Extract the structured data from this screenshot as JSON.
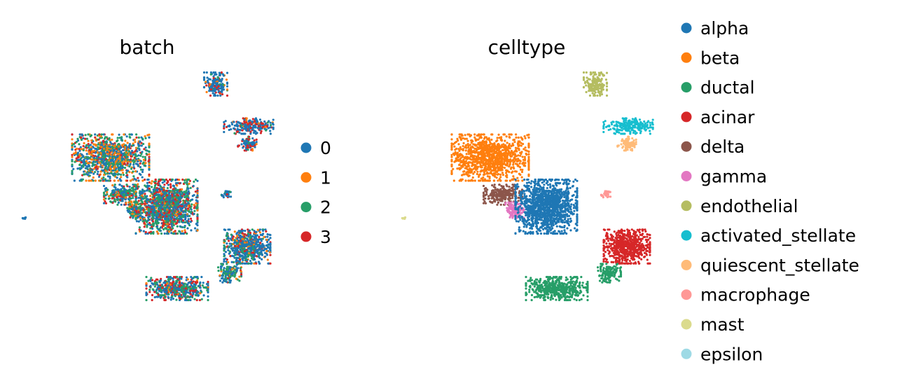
{
  "chart_data": [
    {
      "type": "scatter",
      "title": "batch",
      "xlabel": "",
      "ylabel": "",
      "grid": false,
      "axes_visible": false,
      "legend_placement": "right",
      "legend": [
        {
          "label": "0",
          "color": "#1f77b4"
        },
        {
          "label": "1",
          "color": "#ff7f0e"
        },
        {
          "label": "2",
          "color": "#279e68"
        },
        {
          "label": "3",
          "color": "#d62728"
        }
      ]
    },
    {
      "type": "scatter",
      "title": "celltype",
      "xlabel": "",
      "ylabel": "",
      "grid": false,
      "axes_visible": false,
      "legend_placement": "right",
      "legend": [
        {
          "label": "alpha",
          "color": "#1f77b4"
        },
        {
          "label": "beta",
          "color": "#ff7f0e"
        },
        {
          "label": "ductal",
          "color": "#279e68"
        },
        {
          "label": "acinar",
          "color": "#d62728"
        },
        {
          "label": "delta",
          "color": "#8c564b"
        },
        {
          "label": "gamma",
          "color": "#e377c2"
        },
        {
          "label": "endothelial",
          "color": "#b5bd61"
        },
        {
          "label": "activated_stellate",
          "color": "#17becf"
        },
        {
          "label": "quiescent_stellate",
          "color": "#ffbb78"
        },
        {
          "label": "macrophage",
          "color": "#ff9896"
        },
        {
          "label": "mast",
          "color": "#dbdb8d"
        },
        {
          "label": "epsilon",
          "color": "#9edae5"
        }
      ]
    }
  ],
  "clusters": [
    {
      "celltype": "endothelial",
      "center": [
        13.65,
        17.0
      ],
      "spread": [
        0.75,
        0.75
      ],
      "n": 180,
      "batch_mix": [
        0.65,
        0.1,
        0.1,
        0.15
      ]
    },
    {
      "celltype": "activated_stellate",
      "center": [
        16.0,
        14.0
      ],
      "spread": [
        1.6,
        0.5
      ],
      "n": 220,
      "batch_mix": [
        0.6,
        0.05,
        0.05,
        0.3
      ]
    },
    {
      "celltype": "quiescent_stellate",
      "center": [
        15.9,
        12.75
      ],
      "spread": [
        0.6,
        0.45
      ],
      "n": 90,
      "batch_mix": [
        0.6,
        0.05,
        0.1,
        0.25
      ]
    },
    {
      "celltype": "beta",
      "center": [
        6.15,
        11.75
      ],
      "spread": [
        2.5,
        1.5
      ],
      "n": 1100,
      "batch_mix": [
        0.35,
        0.25,
        0.3,
        0.1
      ]
    },
    {
      "celltype": "delta",
      "center": [
        7.05,
        9.1
      ],
      "spread": [
        1.25,
        0.65
      ],
      "n": 260,
      "batch_mix": [
        0.3,
        0.1,
        0.45,
        0.15
      ]
    },
    {
      "celltype": "gamma",
      "center": [
        7.9,
        8.0
      ],
      "spread": [
        0.6,
        0.5
      ],
      "n": 120,
      "batch_mix": [
        0.3,
        0.1,
        0.45,
        0.15
      ]
    },
    {
      "celltype": "alpha",
      "center": [
        10.15,
        8.25
      ],
      "spread": [
        2.0,
        1.75
      ],
      "n": 1300,
      "batch_mix": [
        0.35,
        0.1,
        0.3,
        0.25
      ]
    },
    {
      "celltype": "macrophage",
      "center": [
        14.4,
        9.1
      ],
      "spread": [
        0.3,
        0.25
      ],
      "n": 30,
      "batch_mix": [
        0.9,
        0.0,
        0.05,
        0.05
      ]
    },
    {
      "celltype": "acinar",
      "center": [
        15.9,
        5.4
      ],
      "spread": [
        1.5,
        1.1
      ],
      "n": 650,
      "batch_mix": [
        0.65,
        0.1,
        0.15,
        0.1
      ]
    },
    {
      "celltype": "ductal",
      "center": [
        14.65,
        3.5
      ],
      "spread": [
        0.75,
        0.6
      ],
      "n": 140,
      "batch_mix": [
        0.4,
        0.1,
        0.4,
        0.1
      ]
    },
    {
      "celltype": "ductal",
      "center": [
        10.9,
        2.4
      ],
      "spread": [
        2.0,
        0.75
      ],
      "n": 500,
      "batch_mix": [
        0.35,
        0.05,
        0.3,
        0.3
      ]
    },
    {
      "celltype": "mast",
      "center": [
        0.0,
        7.4
      ],
      "spread": [
        0.12,
        0.08
      ],
      "n": 8,
      "batch_mix": [
        1.0,
        0.0,
        0.0,
        0.0
      ]
    }
  ]
}
